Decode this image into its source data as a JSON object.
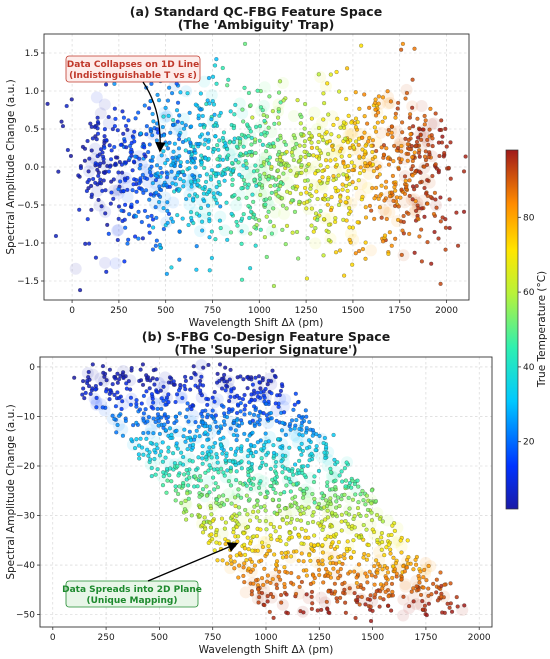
{
  "chart_data": [
    {
      "type": "scatter",
      "title": "(a) Standard QC-FBG Feature Space",
      "subtitle": "(The 'Ambiguity' Trap)",
      "xlabel": "Wavelength Shift Δλ (pm)",
      "ylabel": "Spectral Amplitude Change (a.u.)",
      "xlim": [
        -150,
        2120
      ],
      "ylim": [
        -1.75,
        1.75
      ],
      "xticks": [
        0,
        250,
        500,
        750,
        1000,
        1250,
        1500,
        1750,
        2000
      ],
      "yticks": [
        -1.5,
        -1.0,
        -0.5,
        0.0,
        0.5,
        1.0,
        1.5
      ],
      "ytick_labels": [
        "−1.5",
        "−1.0",
        "−0.5",
        "0.0",
        "0.5",
        "1.0",
        "1.5"
      ],
      "grid": true,
      "color_encoding": "True Temperature (°C)",
      "series_description": "about 1500 points; Δλ spans 50–1950 pm and grows with temperature; amplitude scattered randomly around 0 (std ≈ 0.5, range about −1.6 to 1.6) independent of temperature",
      "points_sample": [
        {
          "x": 80,
          "y": 0.45,
          "t": 5
        },
        {
          "x": 150,
          "y": -0.3,
          "t": 8
        },
        {
          "x": 250,
          "y": 0.9,
          "t": 12
        },
        {
          "x": 350,
          "y": -1.0,
          "t": 16
        },
        {
          "x": 450,
          "y": 0.2,
          "t": 20
        },
        {
          "x": 500,
          "y": 1.4,
          "t": 24
        },
        {
          "x": 600,
          "y": -0.6,
          "t": 28
        },
        {
          "x": 700,
          "y": 0.5,
          "t": 34
        },
        {
          "x": 800,
          "y": -1.3,
          "t": 40
        },
        {
          "x": 900,
          "y": 1.55,
          "t": 46
        },
        {
          "x": 1000,
          "y": 0.0,
          "t": 50
        },
        {
          "x": 1100,
          "y": -0.8,
          "t": 56
        },
        {
          "x": 1200,
          "y": 0.7,
          "t": 60
        },
        {
          "x": 1300,
          "y": -0.2,
          "t": 66
        },
        {
          "x": 1400,
          "y": 1.1,
          "t": 72
        },
        {
          "x": 1500,
          "y": -1.1,
          "t": 76
        },
        {
          "x": 1600,
          "y": 0.3,
          "t": 82
        },
        {
          "x": 1700,
          "y": -0.5,
          "t": 86
        },
        {
          "x": 1800,
          "y": 0.6,
          "t": 90
        },
        {
          "x": 1950,
          "y": 0.1,
          "t": 96
        }
      ],
      "annotation": {
        "lines": [
          "Data Collapses on 1D Line",
          "(Indistinguishable T vs ε)"
        ],
        "arrow_to": {
          "x": 500,
          "y": 0.15
        }
      }
    },
    {
      "type": "scatter",
      "title": "(b) S-FBG Co-Design Feature Space",
      "subtitle": "(The 'Superior Signature')",
      "xlabel": "Wavelength Shift Δλ (pm)",
      "ylabel": "Spectral Amplitude Change (a.u.)",
      "xlim": [
        -60,
        2060
      ],
      "ylim": [
        -52.5,
        2
      ],
      "xticks": [
        0,
        250,
        500,
        750,
        1000,
        1250,
        1500,
        1750,
        2000
      ],
      "yticks": [
        0,
        -10,
        -20,
        -30,
        -40,
        -50
      ],
      "ytick_labels": [
        "0",
        "−10",
        "−20",
        "−30",
        "−40",
        "−50"
      ],
      "grid": true,
      "color_encoding": "True Temperature (°C)",
      "series_description": "about 1500 points forming a slanted band: amplitude ≈ −0.5 × T with noise; Δλ ≈ 60 + 9.5 × T + uniform spread of ~1000 pm",
      "points_sample": [
        {
          "x": 80,
          "y": -1,
          "t": 2
        },
        {
          "x": 400,
          "y": -2,
          "t": 5
        },
        {
          "x": 850,
          "y": -1,
          "t": 3
        },
        {
          "x": 300,
          "y": -10,
          "t": 20
        },
        {
          "x": 700,
          "y": -9,
          "t": 19
        },
        {
          "x": 1100,
          "y": -11,
          "t": 22
        },
        {
          "x": 450,
          "y": -20,
          "t": 40
        },
        {
          "x": 900,
          "y": -19,
          "t": 38
        },
        {
          "x": 1300,
          "y": -20,
          "t": 41
        },
        {
          "x": 650,
          "y": -30,
          "t": 60
        },
        {
          "x": 1050,
          "y": -31,
          "t": 61
        },
        {
          "x": 1500,
          "y": -29,
          "t": 59
        },
        {
          "x": 900,
          "y": -40,
          "t": 79
        },
        {
          "x": 1300,
          "y": -41,
          "t": 81
        },
        {
          "x": 1700,
          "y": -40,
          "t": 80
        },
        {
          "x": 1100,
          "y": -49,
          "t": 97
        },
        {
          "x": 1500,
          "y": -48,
          "t": 95
        },
        {
          "x": 1900,
          "y": -48,
          "t": 96
        }
      ],
      "annotation": {
        "lines": [
          "Data Spreads into 2D Plane",
          "(Unique Mapping)"
        ],
        "arrow_to": {
          "x": 900,
          "y": -33.5
        }
      }
    }
  ],
  "colorbar": {
    "label": "True Temperature (°C)",
    "range": [
      2,
      98
    ],
    "ticks": [
      20,
      40,
      60,
      80
    ],
    "colormap": "jet"
  }
}
